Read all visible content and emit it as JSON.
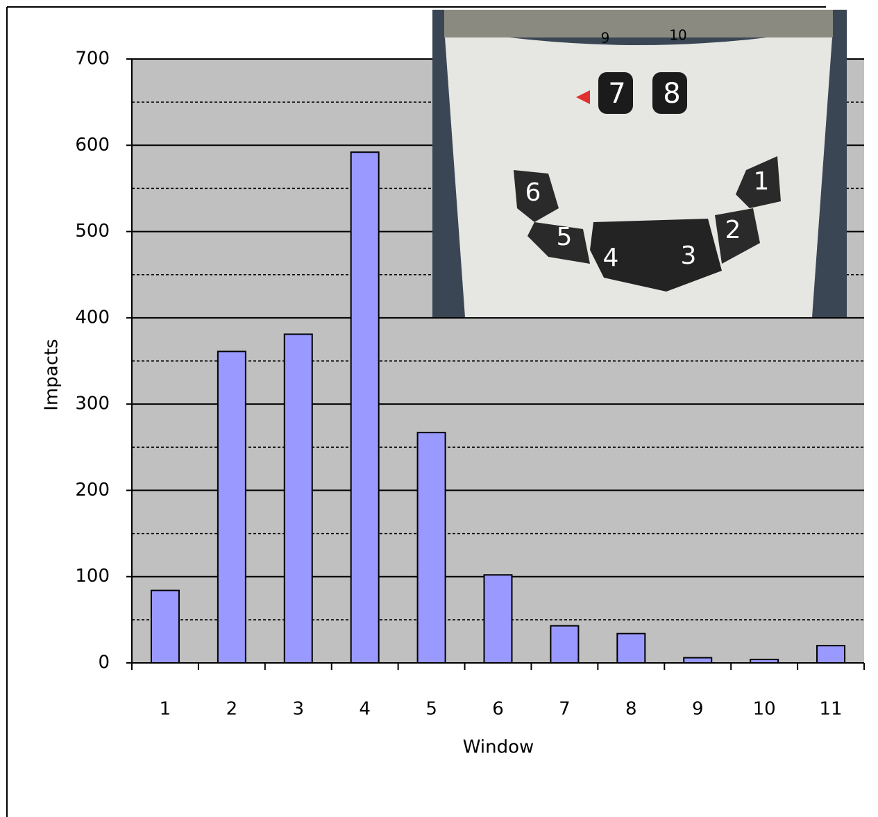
{
  "chart_data": {
    "type": "bar",
    "x_label": "Window",
    "y_label": "Impacts",
    "categories": [
      "1",
      "2",
      "3",
      "4",
      "5",
      "6",
      "7",
      "8",
      "9",
      "10",
      "11"
    ],
    "values": [
      84,
      361,
      381,
      592,
      267,
      102,
      43,
      34,
      6,
      4,
      20
    ],
    "color": "#9999ff",
    "ylim": [
      0,
      700
    ],
    "yticks": [
      0,
      100,
      200,
      300,
      400,
      500,
      600,
      700
    ],
    "grid": true,
    "minor_grid": true,
    "inset_labels": [
      "1",
      "2",
      "3",
      "4",
      "5",
      "6",
      "7",
      "8",
      "9",
      "10"
    ]
  }
}
